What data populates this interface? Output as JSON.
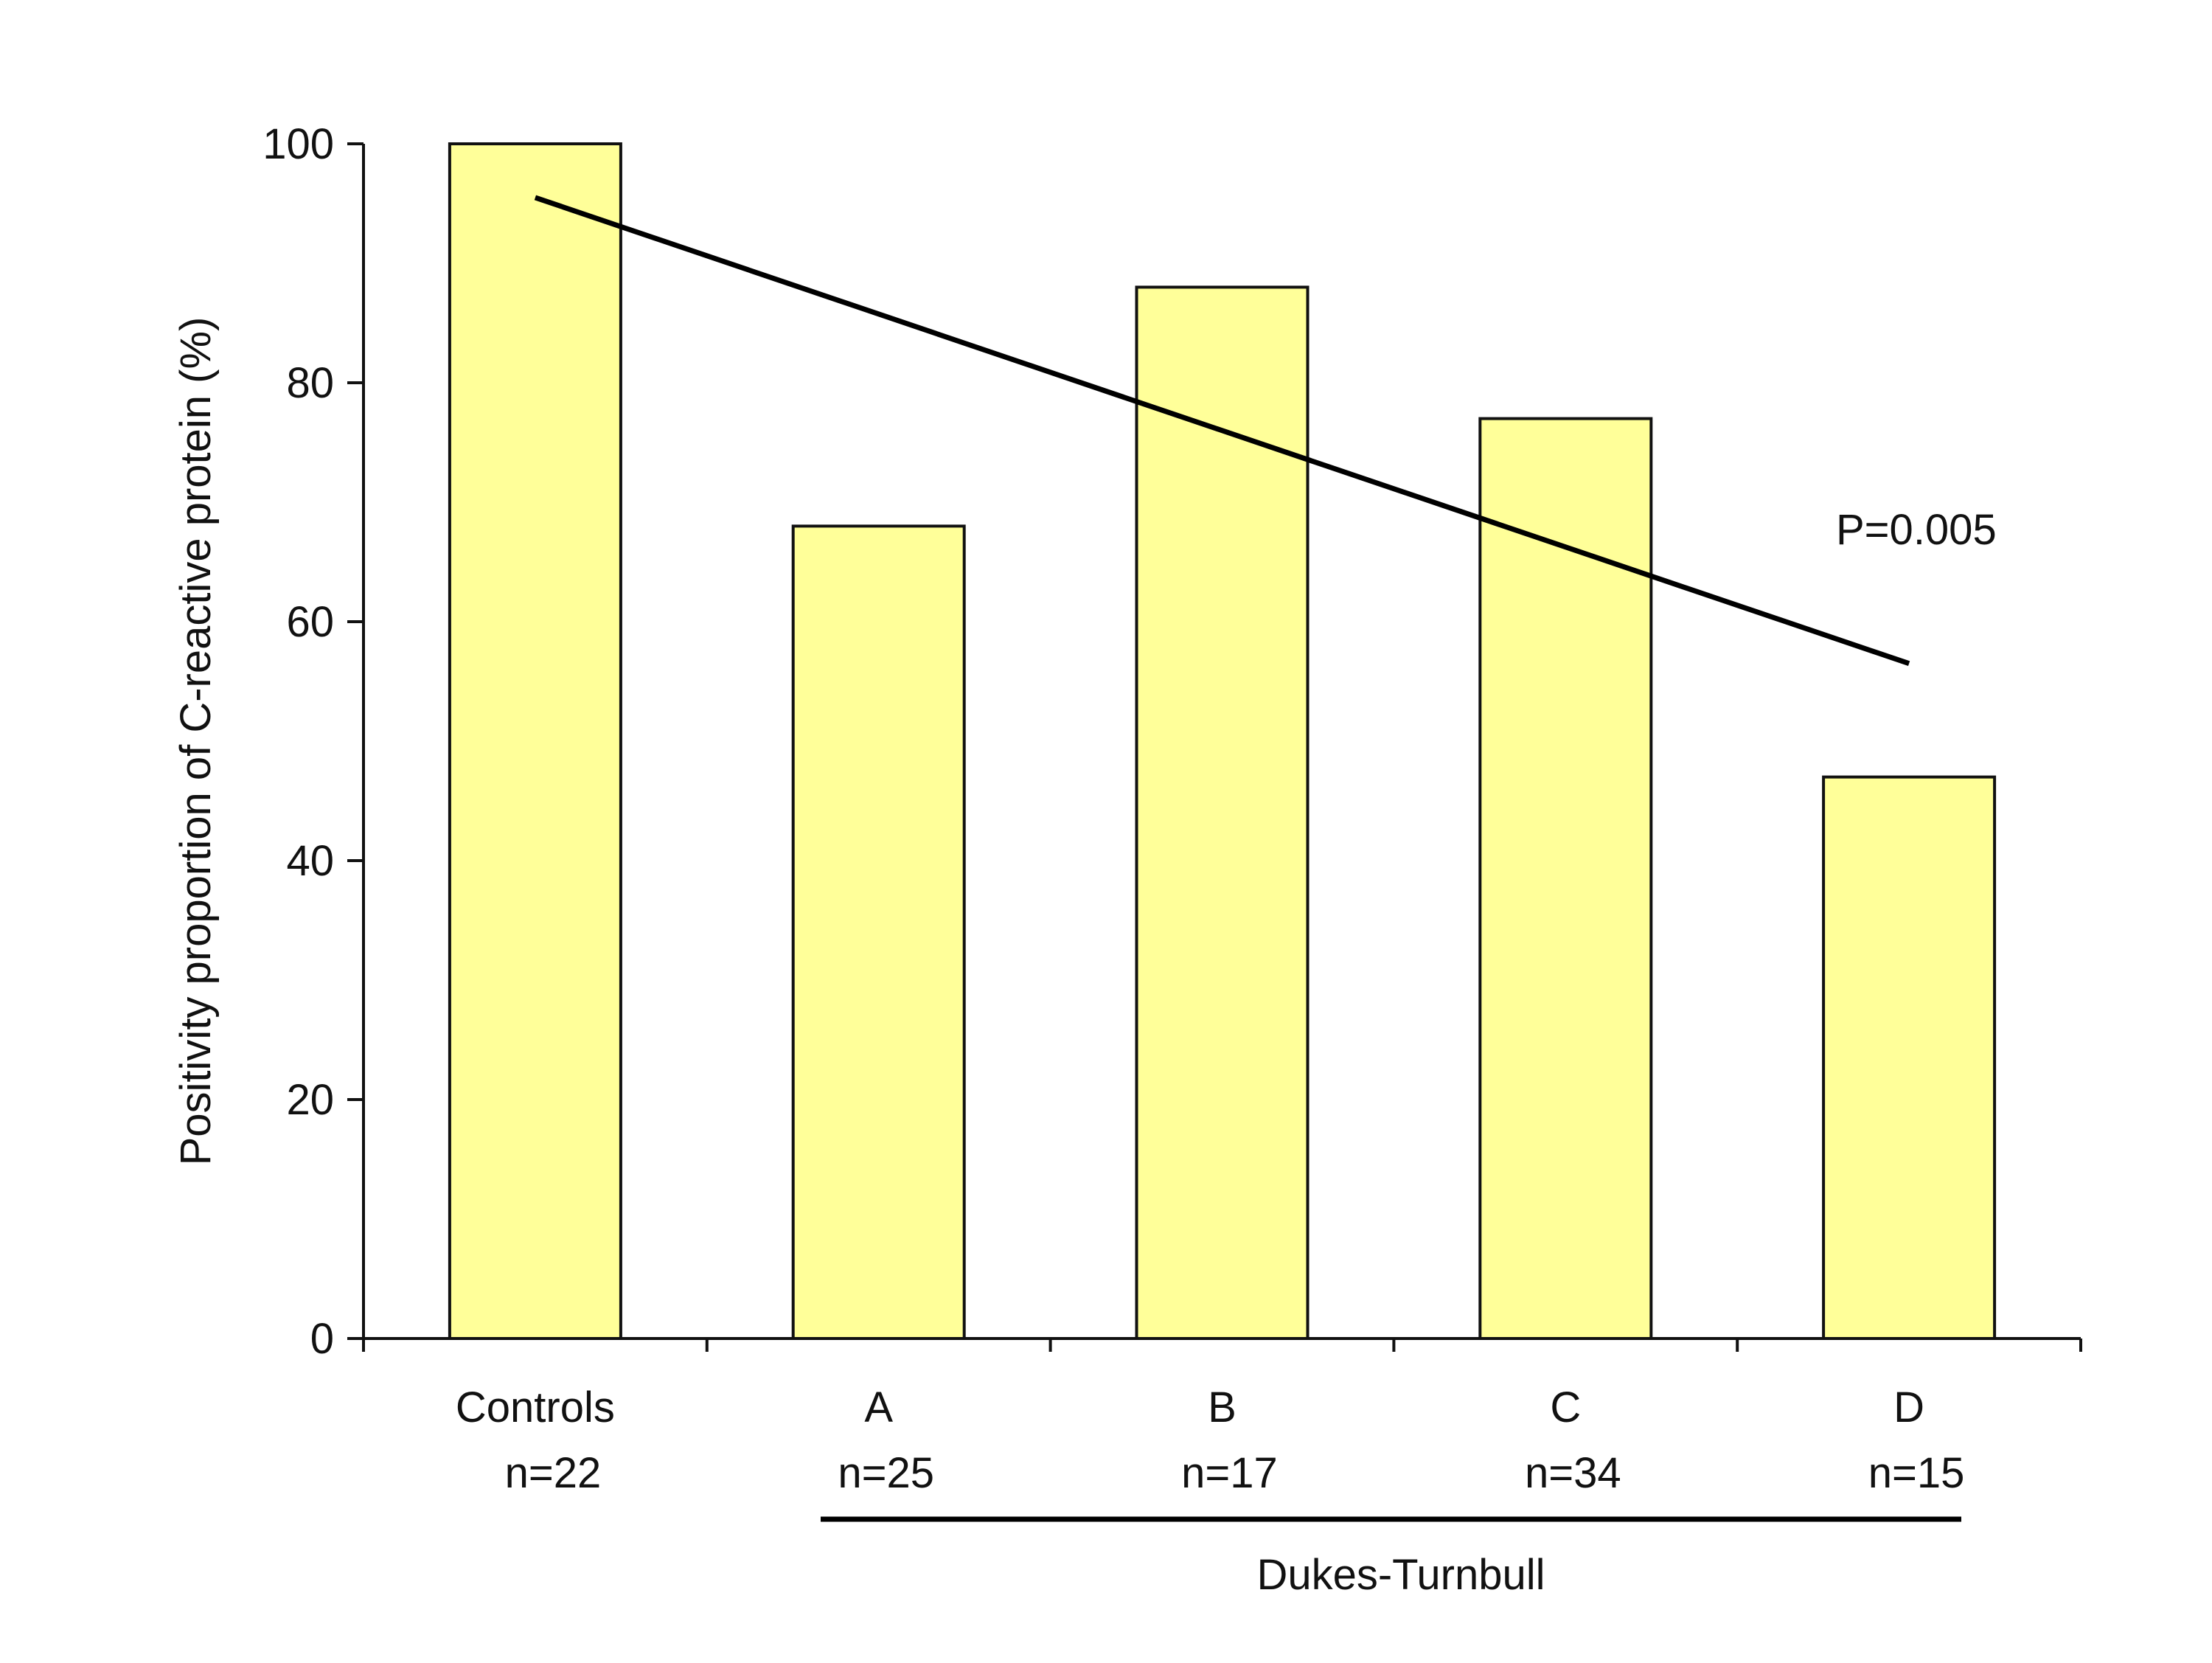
{
  "chart_data": {
    "type": "bar",
    "title": "",
    "xlabel": "",
    "ylabel": "Positivity proportion of C-reactive protein (%)",
    "ylim": [
      0,
      100
    ],
    "yticks": [
      "0",
      "20",
      "40",
      "60",
      "80",
      "100"
    ],
    "categories": [
      {
        "name": "Controls",
        "n": "n=22"
      },
      {
        "name": "A",
        "n": "n=25"
      },
      {
        "name": "B",
        "n": "n=17"
      },
      {
        "name": "C",
        "n": "n=34"
      },
      {
        "name": "D",
        "n": "n=15"
      }
    ],
    "values": [
      100,
      68,
      88,
      77,
      47
    ],
    "trend_line": {
      "start": 95.5,
      "end": 56.5
    },
    "annotation": "P=0.005",
    "group_label": "Dukes-Turnbull",
    "grid": false,
    "colors": {
      "bar_fill": "#ffff99",
      "bar_stroke": "#111111",
      "axis": "#111111",
      "trend": "#000000"
    }
  }
}
